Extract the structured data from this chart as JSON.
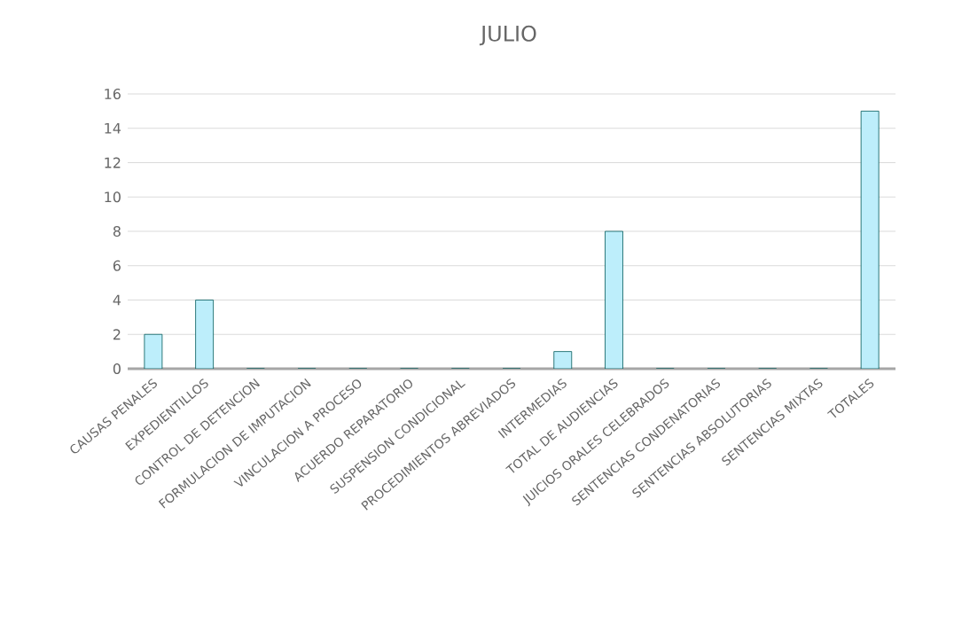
{
  "chart_data": {
    "type": "bar",
    "title": "JULIO",
    "categories": [
      "CAUSAS PENALES",
      "EXPEDIENTILLOS",
      "CONTROL DE DETENCION",
      "FORMULACION DE IMPUTACION",
      "VINCULACION A PROCESO",
      "ACUERDO REPARATORIO",
      "SUSPENSION CONDICIONAL",
      "PROCEDIMIENTOS ABREVIADOS",
      "INTERMEDIAS",
      "TOTAL DE AUDIENCIAS",
      "JUICIOS ORALES CELEBRADOS",
      "SENTENCIAS CONDENATORIAS",
      "SENTENCIAS ABSOLUTORIAS",
      "SENTENCIAS MIXTAS",
      "TOTALES"
    ],
    "values": [
      2,
      4,
      0,
      0,
      0,
      0,
      0,
      0,
      1,
      8,
      0,
      0,
      0,
      0,
      15
    ],
    "color": "#bdeefb",
    "ylim": [
      0,
      16
    ],
    "yticks": [
      0,
      2,
      4,
      6,
      8,
      10,
      12,
      14,
      16
    ],
    "grid": "y"
  }
}
